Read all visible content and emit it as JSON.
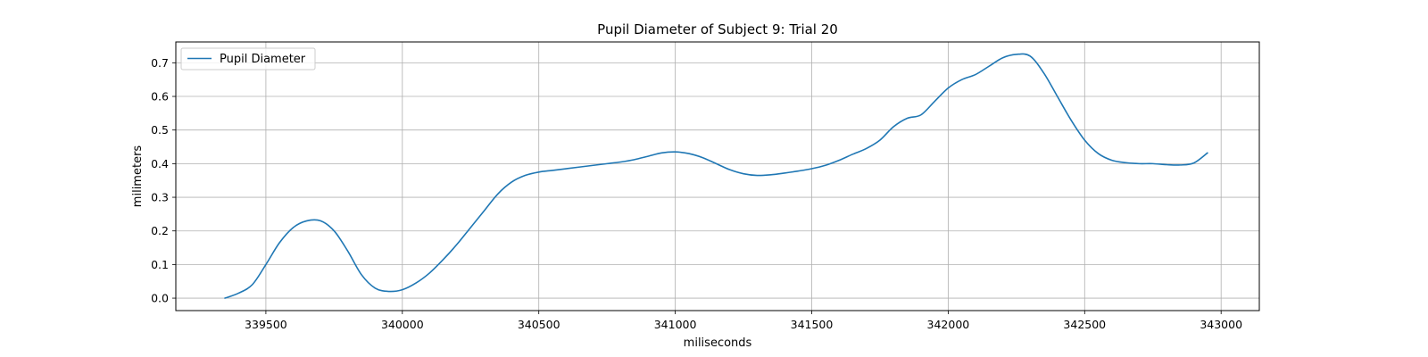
{
  "chart_data": {
    "type": "line",
    "title": "Pupil Diameter of Subject 9: Trial 20",
    "xlabel": "miliseconds",
    "ylabel": "milimeters",
    "xlim": [
      339170,
      343140
    ],
    "ylim": [
      -0.037,
      0.762
    ],
    "xticks": [
      339500,
      340000,
      340500,
      341000,
      341500,
      342000,
      342500,
      343000
    ],
    "yticks": [
      0.0,
      0.1,
      0.2,
      0.3,
      0.4,
      0.5,
      0.6,
      0.7
    ],
    "xtick_labels": [
      "339500",
      "340000",
      "340500",
      "341000",
      "341500",
      "342000",
      "342500",
      "343000"
    ],
    "ytick_labels": [
      "0.0",
      "0.1",
      "0.2",
      "0.3",
      "0.4",
      "0.5",
      "0.6",
      "0.7"
    ],
    "grid": true,
    "legend": {
      "position": "upper-left",
      "entries": [
        "Pupil Diameter"
      ]
    },
    "colors": {
      "series": "#1f77b4",
      "grid": "#b0b0b0",
      "axes": "#000000"
    },
    "series": [
      {
        "name": "Pupil Diameter",
        "x": [
          339350,
          339400,
          339450,
          339500,
          339550,
          339600,
          339650,
          339700,
          339750,
          339800,
          339850,
          339900,
          339950,
          340000,
          340050,
          340100,
          340150,
          340200,
          340250,
          340300,
          340350,
          340400,
          340450,
          340500,
          340550,
          340600,
          340650,
          340700,
          340750,
          340800,
          340850,
          340900,
          340950,
          341000,
          341050,
          341100,
          341150,
          341200,
          341250,
          341300,
          341350,
          341400,
          341450,
          341500,
          341550,
          341600,
          341650,
          341700,
          341750,
          341800,
          341850,
          341900,
          341950,
          342000,
          342050,
          342100,
          342150,
          342200,
          342250,
          342300,
          342350,
          342400,
          342450,
          342500,
          342550,
          342600,
          342650,
          342700,
          342750,
          342800,
          342850,
          342900,
          342950
        ],
        "y": [
          0.0,
          0.015,
          0.04,
          0.1,
          0.165,
          0.21,
          0.23,
          0.23,
          0.2,
          0.14,
          0.07,
          0.03,
          0.02,
          0.025,
          0.045,
          0.075,
          0.115,
          0.16,
          0.21,
          0.26,
          0.31,
          0.345,
          0.365,
          0.375,
          0.38,
          0.385,
          0.39,
          0.395,
          0.4,
          0.405,
          0.412,
          0.422,
          0.432,
          0.435,
          0.43,
          0.418,
          0.4,
          0.382,
          0.37,
          0.365,
          0.367,
          0.372,
          0.378,
          0.385,
          0.395,
          0.41,
          0.428,
          0.445,
          0.47,
          0.51,
          0.535,
          0.545,
          0.585,
          0.625,
          0.65,
          0.665,
          0.69,
          0.715,
          0.725,
          0.72,
          0.67,
          0.6,
          0.53,
          0.47,
          0.43,
          0.41,
          0.403,
          0.4,
          0.4,
          0.397,
          0.396,
          0.402,
          0.432
        ]
      }
    ]
  }
}
